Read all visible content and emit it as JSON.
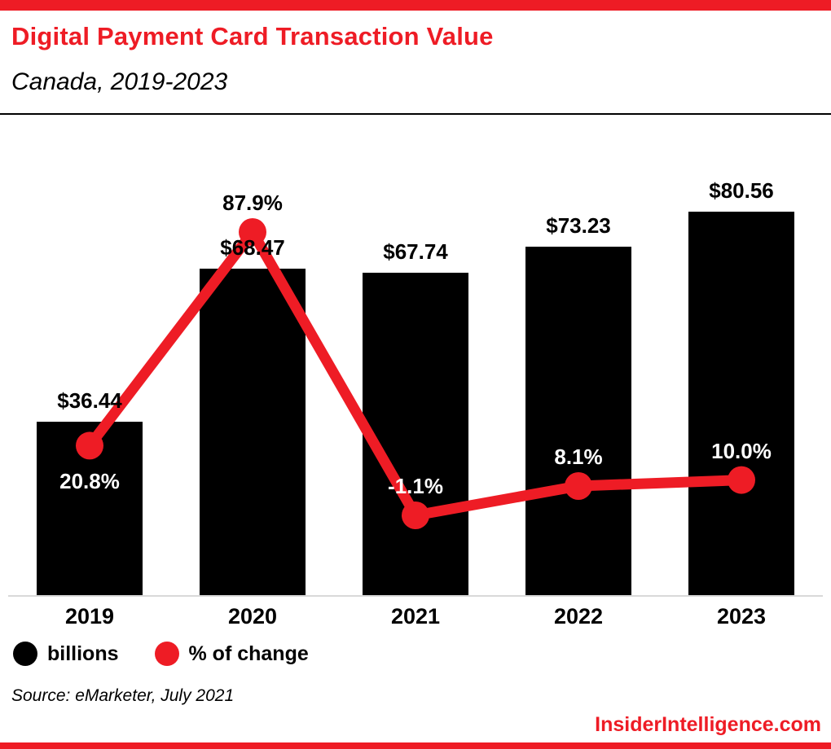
{
  "header": {
    "title": "Digital Payment Card Transaction Value",
    "subtitle": "Canada, 2019-2023"
  },
  "chart_data": {
    "type": "bar",
    "categories": [
      "2019",
      "2020",
      "2021",
      "2022",
      "2023"
    ],
    "series": [
      {
        "name": "billions",
        "type": "bar",
        "color": "#000000",
        "values": [
          36.44,
          68.47,
          67.74,
          73.23,
          80.56
        ],
        "labels": [
          "$36.44",
          "$68.47",
          "$67.74",
          "$73.23",
          "$80.56"
        ]
      },
      {
        "name": "% of change",
        "type": "line",
        "color": "#ee1c25",
        "values": [
          20.8,
          87.9,
          -1.1,
          8.1,
          10.0
        ],
        "labels": [
          "20.8%",
          "87.9%",
          "-1.1%",
          "8.1%",
          "10.0%"
        ]
      }
    ],
    "legend": [
      {
        "label": "billions",
        "color": "#000000"
      },
      {
        "label": "% of change",
        "color": "#ee1c25"
      }
    ],
    "legend_position": "bottom-left",
    "grid": false,
    "xlabel": "",
    "ylabel": ""
  },
  "footer": {
    "source": "Source: eMarketer, July 2021",
    "site": "InsiderIntelligence.com"
  },
  "colors": {
    "accent": "#ee1c25",
    "bar": "#000000",
    "baseline": "#d9d9d9"
  }
}
